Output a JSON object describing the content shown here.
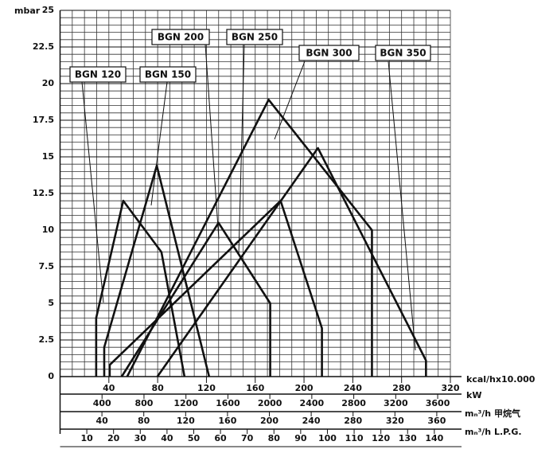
{
  "chart_data": {
    "type": "line",
    "y_label": "mbar",
    "x_label": "kcal/hx10.000",
    "xlim": [
      0,
      320
    ],
    "xticks": [
      40,
      80,
      120,
      160,
      200,
      240,
      280,
      320
    ],
    "ylim": [
      0,
      25
    ],
    "yticks": [
      0,
      2.5,
      5,
      7.5,
      10,
      12.5,
      15,
      17.5,
      20,
      22.5,
      25
    ],
    "grid": true,
    "secondary_axes": [
      {
        "label": "kW",
        "xlim": [
          0,
          3721
        ],
        "xticks": [
          400,
          800,
          1200,
          1600,
          2000,
          2400,
          2800,
          3200,
          3600
        ]
      },
      {
        "label": "mₙ³/h 甲烷气",
        "xlim": [
          0,
          373
        ],
        "xticks": [
          40,
          80,
          120,
          160,
          200,
          240,
          280,
          320,
          360
        ]
      },
      {
        "label": "mₙ³/h L.P.G.",
        "xlim": [
          0,
          146
        ],
        "xticks": [
          10,
          20,
          30,
          40,
          50,
          60,
          70,
          80,
          90,
          100,
          110,
          120,
          130,
          140
        ]
      }
    ],
    "series": [
      {
        "name": "BGN 120",
        "color": "#111111",
        "x": [
          29.6,
          29.6,
          51.8,
          83.1,
          102
        ],
        "values": [
          0,
          4,
          12,
          8.5,
          0
        ]
      },
      {
        "name": "BGN 150",
        "color": "#111111",
        "x": [
          36.2,
          36.2,
          79.3,
          122.2
        ],
        "values": [
          0,
          2,
          14.4,
          0
        ]
      },
      {
        "name": "BGN 200",
        "color": "#111111",
        "x": [
          50.5,
          129.9,
          172.3,
          172.3
        ],
        "values": [
          0,
          10.5,
          5,
          0
        ]
      },
      {
        "name": "BGN 250",
        "color": "#111111",
        "x": [
          40.7,
          40.7,
          180.8,
          214.7,
          214.7
        ],
        "values": [
          0,
          0.8,
          12,
          3.3,
          0
        ]
      },
      {
        "name": "BGN 300",
        "color": "#111111",
        "x": [
          55,
          171,
          255.7,
          255.7
        ],
        "values": [
          0,
          18.9,
          10,
          0
        ]
      },
      {
        "name": "BGN 350",
        "color": "#111111",
        "x": [
          79.8,
          211.4,
          300,
          300
        ],
        "values": [
          0,
          15.6,
          1.1,
          0
        ]
      }
    ]
  }
}
